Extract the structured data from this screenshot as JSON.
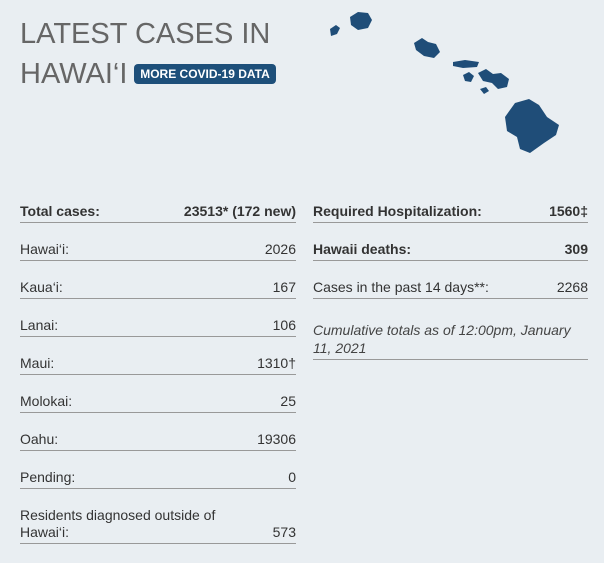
{
  "header": {
    "title": "LATEST CASES IN HAWAI‘I",
    "button": "MORE COVID-19 DATA"
  },
  "left_table": {
    "rows": [
      [
        "Total cases:",
        "23513* (172 new)"
      ],
      [
        "Hawai‘i:",
        2026
      ],
      [
        "Kaua‘i:",
        167
      ],
      [
        "Lanai:",
        106
      ],
      [
        "Maui:",
        "1310†"
      ],
      [
        "Molokai:",
        25
      ],
      [
        "Oahu:",
        19306
      ],
      [
        "Pending:",
        0
      ],
      [
        "Residents diagnosed outside of Hawai‘i:",
        573
      ]
    ]
  },
  "right_table": {
    "rows": [
      [
        "Required Hospitalization:",
        "1560‡"
      ],
      [
        "Hawaii deaths:",
        309
      ],
      [
        "Cases in the past 14 days**:",
        2268
      ]
    ]
  },
  "note": "Cumulative totals as of 12:00pm, January 11, 2021"
}
